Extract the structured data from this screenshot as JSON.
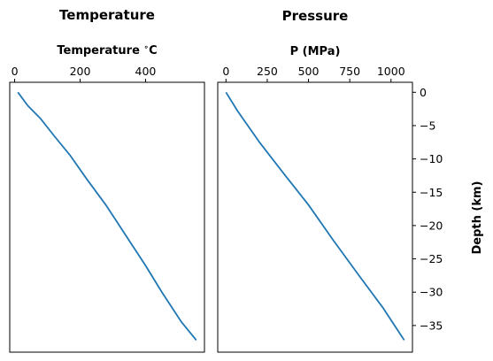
{
  "chart_data": [
    {
      "type": "line",
      "title": "Temperature",
      "xlabel": "Temperature $^\\circ$C",
      "ylabel": "",
      "xlim": [
        -15,
        580
      ],
      "ylim": [
        -39,
        1.5
      ],
      "x_ticks": [
        0,
        200,
        400
      ],
      "x_tick_labels": [
        "0",
        "200",
        "400"
      ],
      "x_axis_position": "top",
      "grid": false,
      "series": [
        {
          "color": "#1f77b4",
          "x": [
            10,
            40,
            80,
            120,
            170,
            220,
            280,
            340,
            400,
            450,
            510,
            555
          ],
          "y": [
            0,
            -2,
            -4,
            -6.5,
            -9.5,
            -13,
            -17,
            -21.5,
            -26,
            -30,
            -34.5,
            -37.2
          ]
        }
      ]
    },
    {
      "type": "line",
      "title": "Pressure",
      "xlabel": "P (MPa)",
      "ylabel": "Depth (km)",
      "xlim": [
        -50,
        1130
      ],
      "ylim": [
        -39,
        1.5
      ],
      "x_ticks": [
        0,
        250,
        500,
        750,
        1000
      ],
      "x_tick_labels": [
        "0",
        "250",
        "500",
        "750",
        "1000"
      ],
      "y_ticks": [
        0,
        -5,
        -10,
        -15,
        -20,
        -25,
        -30,
        -35
      ],
      "y_tick_labels": [
        "0",
        "−5",
        "−10",
        "−15",
        "−20",
        "−25",
        "−30",
        "−35"
      ],
      "x_axis_position": "top",
      "y_axis_position": "right",
      "grid": false,
      "series": [
        {
          "color": "#1f77b4",
          "x": [
            0,
            70,
            200,
            350,
            500,
            650,
            800,
            950,
            1080
          ],
          "y": [
            0,
            -2.8,
            -7.4,
            -12.2,
            -16.9,
            -22.2,
            -27.3,
            -32.3,
            -37.2
          ]
        }
      ]
    }
  ]
}
